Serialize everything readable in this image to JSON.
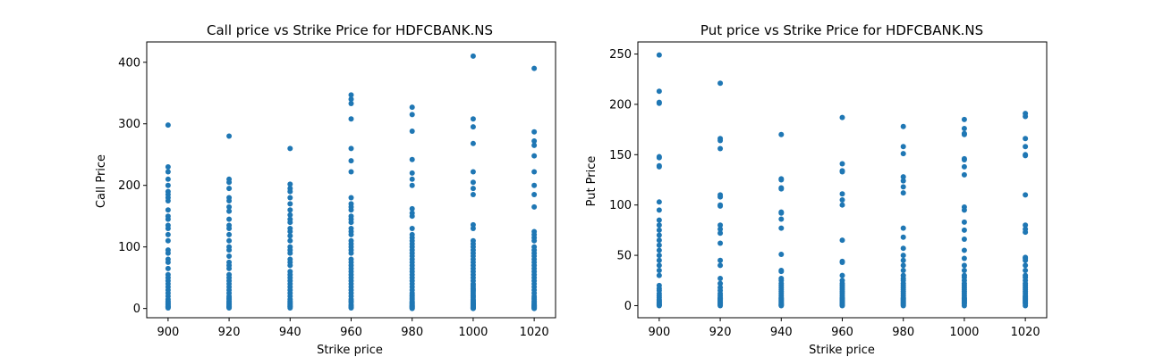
{
  "chart_data": [
    {
      "type": "scatter",
      "title": "Call price vs Strike Price for HDFCBANK.NS",
      "xlabel": "Strike price",
      "ylabel": "Call Price",
      "xlim": [
        893,
        1027
      ],
      "ylim": [
        -15,
        433
      ],
      "xticks": [
        900,
        920,
        940,
        960,
        980,
        1000,
        1020
      ],
      "yticks": [
        0,
        100,
        200,
        300,
        400
      ],
      "color": "#1f77b4",
      "series": [
        {
          "x": [
            900,
            900,
            900,
            900,
            900,
            900,
            900,
            900,
            900,
            900,
            900,
            900,
            900,
            900,
            900,
            900,
            900,
            900,
            900,
            900,
            900,
            900,
            900,
            900,
            900,
            900,
            900,
            900,
            900,
            900,
            900,
            900,
            900,
            900,
            900,
            900,
            900,
            900,
            920,
            920,
            920,
            920,
            920,
            920,
            920,
            920,
            920,
            920,
            920,
            920,
            920,
            920,
            920,
            920,
            920,
            920,
            920,
            920,
            920,
            920,
            920,
            920,
            920,
            920,
            920,
            920,
            920,
            920,
            920,
            920,
            920,
            920,
            920,
            920,
            920,
            940,
            940,
            940,
            940,
            940,
            940,
            940,
            940,
            940,
            940,
            940,
            940,
            940,
            940,
            940,
            940,
            940,
            940,
            940,
            940,
            940,
            940,
            940,
            940,
            940,
            940,
            940,
            940,
            940,
            940,
            940,
            940,
            940,
            940,
            940,
            940,
            940,
            960,
            960,
            960,
            960,
            960,
            960,
            960,
            960,
            960,
            960,
            960,
            960,
            960,
            960,
            960,
            960,
            960,
            960,
            960,
            960,
            960,
            960,
            960,
            960,
            960,
            960,
            960,
            960,
            960,
            960,
            960,
            960,
            960,
            960,
            960,
            960,
            960,
            960,
            960,
            960,
            960,
            960,
            980,
            980,
            980,
            980,
            980,
            980,
            980,
            980,
            980,
            980,
            980,
            980,
            980,
            980,
            980,
            980,
            980,
            980,
            980,
            980,
            980,
            980,
            980,
            980,
            980,
            980,
            980,
            980,
            980,
            980,
            980,
            980,
            980,
            980,
            980,
            980,
            980,
            980,
            980,
            980,
            980,
            980,
            980,
            980,
            980,
            980,
            1000,
            1000,
            1000,
            1000,
            1000,
            1000,
            1000,
            1000,
            1000,
            1000,
            1000,
            1000,
            1000,
            1000,
            1000,
            1000,
            1000,
            1000,
            1000,
            1000,
            1000,
            1000,
            1000,
            1000,
            1000,
            1000,
            1000,
            1000,
            1000,
            1000,
            1000,
            1000,
            1000,
            1000,
            1000,
            1000,
            1000,
            1000,
            1000,
            1000,
            1000,
            1000,
            1000,
            1000,
            1000,
            1000,
            1000,
            1000,
            1000,
            1000,
            1020,
            1020,
            1020,
            1020,
            1020,
            1020,
            1020,
            1020,
            1020,
            1020,
            1020,
            1020,
            1020,
            1020,
            1020,
            1020,
            1020,
            1020,
            1020,
            1020,
            1020,
            1020,
            1020,
            1020,
            1020,
            1020,
            1020,
            1020,
            1020,
            1020,
            1020,
            1020,
            1020,
            1020,
            1020,
            1020,
            1020,
            1020,
            1020,
            1020,
            1020,
            1020
          ],
          "y": [
            298,
            230,
            222,
            210,
            200,
            190,
            185,
            180,
            175,
            160,
            150,
            145,
            135,
            130,
            120,
            110,
            95,
            90,
            80,
            75,
            65,
            55,
            50,
            45,
            40,
            35,
            30,
            25,
            20,
            15,
            12,
            10,
            8,
            6,
            4,
            3,
            2,
            1,
            280,
            210,
            205,
            195,
            180,
            175,
            165,
            158,
            145,
            135,
            130,
            120,
            110,
            100,
            95,
            85,
            75,
            70,
            65,
            55,
            50,
            45,
            40,
            35,
            30,
            25,
            20,
            17,
            15,
            12,
            10,
            8,
            6,
            4,
            3,
            2,
            1,
            260,
            202,
            195,
            190,
            180,
            170,
            160,
            152,
            145,
            140,
            130,
            125,
            118,
            110,
            100,
            95,
            90,
            80,
            75,
            70,
            60,
            55,
            50,
            45,
            40,
            35,
            30,
            25,
            20,
            15,
            12,
            10,
            8,
            6,
            4,
            3,
            1,
            347,
            340,
            333,
            308,
            260,
            240,
            222,
            180,
            170,
            165,
            160,
            150,
            145,
            140,
            130,
            125,
            120,
            110,
            105,
            100,
            95,
            90,
            80,
            75,
            70,
            65,
            60,
            55,
            50,
            45,
            40,
            35,
            30,
            25,
            20,
            15,
            12,
            10,
            6,
            4,
            2,
            1,
            327,
            315,
            288,
            242,
            220,
            210,
            200,
            162,
            155,
            150,
            130,
            120,
            115,
            110,
            105,
            100,
            95,
            90,
            85,
            80,
            75,
            70,
            65,
            60,
            55,
            50,
            45,
            40,
            35,
            30,
            25,
            22,
            20,
            17,
            15,
            12,
            10,
            9,
            8,
            6,
            5,
            4,
            3,
            2,
            1,
            0,
            410,
            308,
            295,
            268,
            222,
            205,
            195,
            185,
            136,
            130,
            110,
            105,
            100,
            95,
            90,
            85,
            80,
            75,
            70,
            65,
            60,
            55,
            50,
            45,
            40,
            38,
            35,
            32,
            30,
            28,
            25,
            22,
            20,
            18,
            15,
            13,
            12,
            10,
            9,
            8,
            7,
            6,
            5,
            4,
            3,
            2,
            1.5,
            1,
            0.5,
            0,
            390,
            287,
            272,
            265,
            248,
            222,
            200,
            185,
            165,
            125,
            120,
            115,
            110,
            100,
            95,
            90,
            85,
            80,
            75,
            70,
            65,
            60,
            55,
            50,
            45,
            40,
            35,
            30,
            25,
            20,
            17,
            15,
            12,
            10,
            8,
            6,
            5,
            4,
            3,
            2,
            1,
            0
          ]
        }
      ]
    },
    {
      "type": "scatter",
      "title": "Put price vs Strike Price for HDFCBANK.NS",
      "xlabel": "Strike price",
      "ylabel": "Put Price",
      "xlim": [
        893,
        1027
      ],
      "ylim": [
        -12,
        262
      ],
      "xticks": [
        900,
        920,
        940,
        960,
        980,
        1000,
        1020
      ],
      "yticks": [
        0,
        50,
        100,
        150,
        200,
        250
      ],
      "color": "#1f77b4",
      "series": [
        {
          "x": [
            900,
            900,
            900,
            900,
            900,
            900,
            900,
            900,
            900,
            900,
            900,
            900,
            900,
            900,
            900,
            900,
            900,
            900,
            900,
            900,
            900,
            900,
            900,
            900,
            900,
            900,
            900,
            900,
            900,
            900,
            900,
            900,
            900,
            900,
            900,
            900,
            920,
            920,
            920,
            920,
            920,
            920,
            920,
            920,
            920,
            920,
            920,
            920,
            920,
            920,
            920,
            920,
            920,
            920,
            920,
            920,
            920,
            920,
            920,
            920,
            920,
            920,
            920,
            920,
            920,
            940,
            940,
            940,
            940,
            940,
            940,
            940,
            940,
            940,
            940,
            940,
            940,
            940,
            940,
            940,
            940,
            940,
            940,
            940,
            940,
            940,
            940,
            940,
            940,
            940,
            940,
            940,
            940,
            940,
            940,
            940,
            960,
            960,
            960,
            960,
            960,
            960,
            960,
            960,
            960,
            960,
            960,
            960,
            960,
            960,
            960,
            960,
            960,
            960,
            960,
            960,
            960,
            960,
            960,
            960,
            960,
            960,
            960,
            960,
            960,
            980,
            980,
            980,
            980,
            980,
            980,
            980,
            980,
            980,
            980,
            980,
            980,
            980,
            980,
            980,
            980,
            980,
            980,
            980,
            980,
            980,
            980,
            980,
            980,
            980,
            980,
            980,
            980,
            980,
            980,
            980,
            980,
            980,
            1000,
            1000,
            1000,
            1000,
            1000,
            1000,
            1000,
            1000,
            1000,
            1000,
            1000,
            1000,
            1000,
            1000,
            1000,
            1000,
            1000,
            1000,
            1000,
            1000,
            1000,
            1000,
            1000,
            1000,
            1000,
            1000,
            1000,
            1000,
            1000,
            1000,
            1000,
            1000,
            1000,
            1000,
            1000,
            1020,
            1020,
            1020,
            1020,
            1020,
            1020,
            1020,
            1020,
            1020,
            1020,
            1020,
            1020,
            1020,
            1020,
            1020,
            1020,
            1020,
            1020,
            1020,
            1020,
            1020,
            1020,
            1020,
            1020,
            1020,
            1020,
            1020,
            1020,
            1020,
            1020,
            1020,
            1020,
            1020,
            1020
          ],
          "y": [
            249,
            213,
            202,
            201,
            148,
            147,
            139,
            138,
            103,
            95,
            85,
            80,
            75,
            70,
            65,
            60,
            55,
            50,
            45,
            40,
            35,
            30,
            20,
            17,
            15,
            12,
            10,
            8,
            6,
            5,
            4,
            3,
            2,
            1,
            0.5,
            0,
            221,
            166,
            164,
            156,
            110,
            108,
            100,
            99,
            80,
            76,
            72,
            62,
            45,
            40,
            27,
            22,
            18,
            15,
            12,
            10,
            8,
            7,
            6,
            5,
            4,
            3,
            2,
            1,
            0,
            170,
            126,
            125,
            117,
            116,
            93,
            92,
            86,
            77,
            51,
            35,
            34,
            27,
            25,
            22,
            20,
            18,
            16,
            14,
            12,
            10,
            8,
            7,
            6,
            5,
            4,
            3,
            2,
            1,
            0.5,
            0,
            187,
            141,
            134,
            133,
            111,
            105,
            100,
            65,
            44,
            43,
            30,
            25,
            22,
            20,
            18,
            16,
            14,
            12,
            10,
            8,
            7,
            6,
            5,
            4,
            3,
            2,
            1,
            0.5,
            0,
            178,
            158,
            151,
            128,
            124,
            118,
            112,
            77,
            68,
            57,
            50,
            45,
            40,
            35,
            30,
            27,
            25,
            22,
            20,
            18,
            16,
            14,
            12,
            10,
            8,
            7,
            6,
            5,
            4,
            3,
            2,
            1,
            0,
            185,
            176,
            171,
            170,
            146,
            145,
            138,
            130,
            98,
            95,
            83,
            75,
            66,
            55,
            47,
            40,
            35,
            30,
            28,
            25,
            22,
            20,
            18,
            16,
            14,
            12,
            10,
            8,
            7,
            6,
            5,
            4,
            3,
            2,
            0,
            191,
            188,
            166,
            158,
            150,
            149,
            110,
            80,
            76,
            73,
            48,
            47,
            45,
            40,
            35,
            30,
            28,
            25,
            22,
            20,
            18,
            16,
            14,
            12,
            10,
            9,
            8,
            7,
            6,
            5,
            4,
            3,
            2,
            0
          ]
        }
      ]
    }
  ]
}
